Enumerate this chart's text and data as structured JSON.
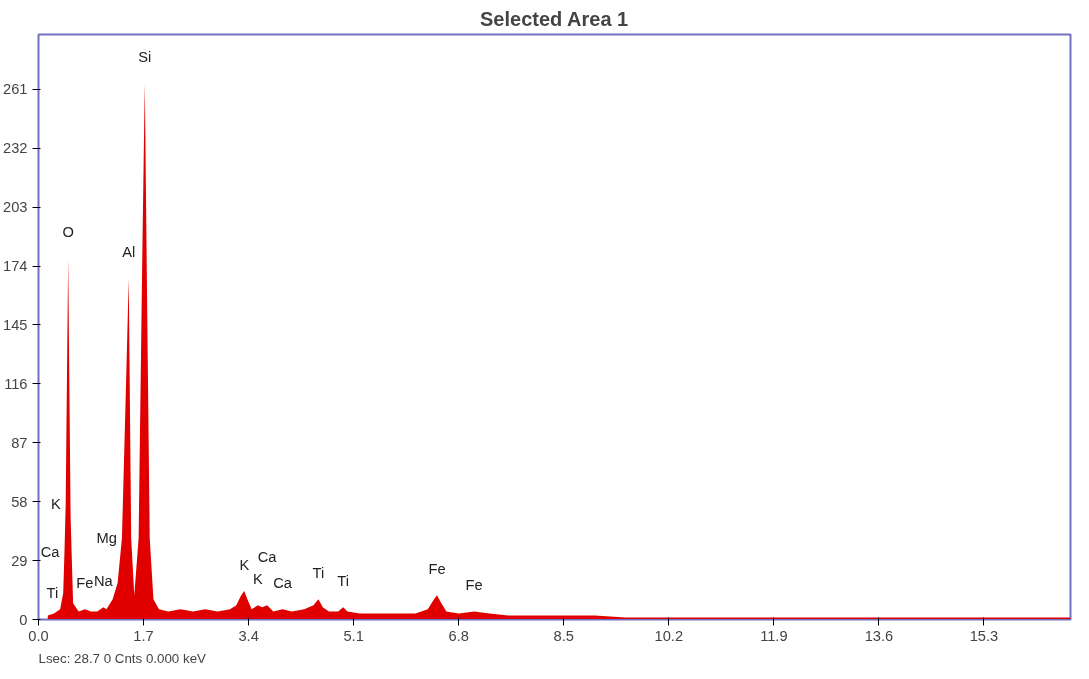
{
  "chart_data": {
    "type": "area",
    "title": "Selected Area 1",
    "x": [
      0.15,
      0.25,
      0.35,
      0.4,
      0.42,
      0.44,
      0.48,
      0.52,
      0.56,
      0.65,
      0.75,
      0.85,
      0.95,
      1.05,
      1.1,
      1.2,
      1.28,
      1.35,
      1.42,
      1.46,
      1.5,
      1.55,
      1.62,
      1.68,
      1.72,
      1.76,
      1.8,
      1.86,
      1.95,
      2.1,
      2.3,
      2.5,
      2.7,
      2.9,
      3.1,
      3.2,
      3.28,
      3.33,
      3.38,
      3.45,
      3.55,
      3.62,
      3.7,
      3.8,
      3.95,
      4.1,
      4.3,
      4.45,
      4.53,
      4.6,
      4.7,
      4.85,
      4.93,
      5.0,
      5.2,
      5.5,
      5.8,
      6.1,
      6.3,
      6.4,
      6.45,
      6.5,
      6.6,
      6.8,
      7.05,
      7.3,
      7.6,
      8.0,
      8.5,
      9.0,
      9.5,
      10.0,
      10.5,
      11.0,
      12.0,
      13.0,
      14.0,
      15.0,
      16.0,
      16.7
    ],
    "series": [
      {
        "color": "#e00000",
        "values": [
          2,
          3,
          5,
          13,
          33,
          57,
          178,
          50,
          8,
          4,
          5,
          4,
          4,
          6,
          5,
          10,
          18,
          40,
          120,
          168,
          40,
          12,
          40,
          180,
          264,
          150,
          40,
          10,
          5,
          4,
          5,
          4,
          5,
          4,
          5,
          7,
          12,
          14,
          10,
          5,
          7,
          6,
          7,
          4,
          5,
          4,
          5,
          7,
          10,
          6,
          4,
          4,
          6,
          4,
          3,
          3,
          3,
          3,
          5,
          10,
          12,
          9,
          4,
          3,
          4,
          3,
          2,
          2,
          2,
          2,
          1,
          1,
          1,
          1,
          1,
          1,
          1,
          1,
          1,
          1
        ]
      }
    ],
    "xlim": [
      0,
      16.7
    ],
    "ylim": [
      0,
      288
    ],
    "xticks": [
      {
        "value": 0,
        "label": "0.0"
      },
      1.7,
      3.4,
      5.1,
      6.8,
      8.5,
      10.2,
      11.9,
      13.6,
      15.3
    ],
    "yticks": [
      0,
      29,
      58,
      87,
      116,
      145,
      174,
      203,
      232,
      261
    ],
    "grid": false,
    "annotations": [
      {
        "text": "Si",
        "x": 1.72,
        "y": 264
      },
      {
        "text": "O",
        "x": 0.48,
        "y": 178
      },
      {
        "text": "Al",
        "x": 1.46,
        "y": 168
      },
      {
        "text": "K",
        "x": 0.44,
        "y": 57
      },
      {
        "text": "Ca",
        "x": 0.42,
        "y": 33
      },
      {
        "text": "Ti",
        "x": 0.4,
        "y": 13
      },
      {
        "text": "Fe",
        "x": 0.75,
        "y": 5
      },
      {
        "text": "Na",
        "x": 1.05,
        "y": 6
      },
      {
        "text": "Mg",
        "x": 1.35,
        "y": 40
      },
      {
        "text": "K",
        "x": 3.33,
        "y": 14
      },
      {
        "text": "K",
        "x": 3.55,
        "y": 7
      },
      {
        "text": "Ca",
        "x": 3.7,
        "y": 7
      },
      {
        "text": "Ca",
        "x": 3.95,
        "y": 5
      },
      {
        "text": "Ti",
        "x": 4.53,
        "y": 10
      },
      {
        "text": "Ti",
        "x": 4.93,
        "y": 6
      },
      {
        "text": "Fe",
        "x": 6.45,
        "y": 12
      },
      {
        "text": "Fe",
        "x": 7.05,
        "y": 4
      },
      "Lsec: 28.7     0 Cnts     0.000 keV"
    ]
  }
}
